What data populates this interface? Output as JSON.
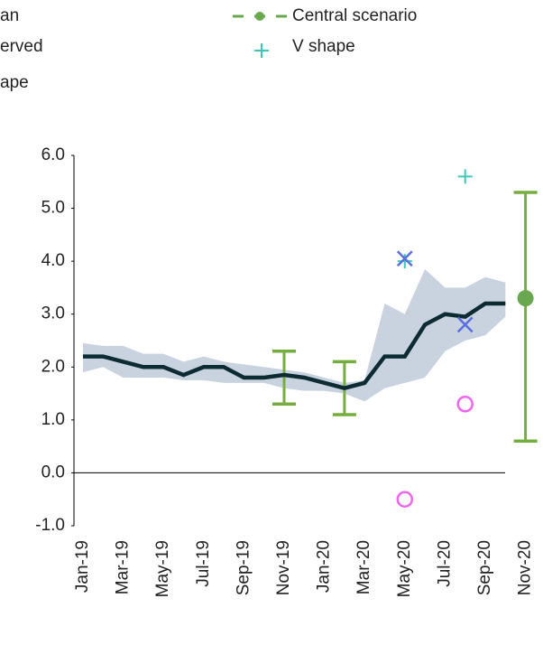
{
  "chart_data": {
    "type": "line",
    "categories": [
      "Jan-19",
      null,
      "Mar-19",
      null,
      "May-19",
      null,
      "Jul-19",
      null,
      "Sep-19",
      null,
      "Nov-19",
      null,
      "Jan-20",
      null,
      "Mar-20",
      null,
      "May-20",
      null,
      "Jul-20",
      null,
      "Sep-20",
      null,
      "Nov-20"
    ],
    "ylim": [
      -1,
      6
    ],
    "yticks": [
      {
        "value": -1,
        "label": "-1.0"
      },
      {
        "value": 0,
        "label": "0.0"
      },
      {
        "value": 1,
        "label": "1.0"
      },
      {
        "value": 2,
        "label": "2.0"
      },
      {
        "value": 3,
        "label": "3.0"
      },
      {
        "value": 4,
        "label": "4.0"
      },
      {
        "value": 5,
        "label": "5.0"
      },
      {
        "value": 6,
        "label": "6.0"
      }
    ],
    "band": {
      "name": "erved",
      "color": "#c9d3e0",
      "high": [
        2.45,
        2.4,
        2.4,
        2.25,
        2.25,
        2.1,
        2.2,
        2.1,
        2.05,
        2.0,
        1.95,
        1.9,
        1.8,
        1.7,
        1.75,
        3.2,
        3.0,
        3.85,
        3.5,
        3.5,
        3.7,
        3.6,
        null
      ],
      "low": [
        1.9,
        2.0,
        1.8,
        1.8,
        1.8,
        1.75,
        1.75,
        1.7,
        1.7,
        1.7,
        1.6,
        1.55,
        1.55,
        1.5,
        1.35,
        1.6,
        1.7,
        1.8,
        2.3,
        2.5,
        2.6,
        2.95,
        null
      ]
    },
    "series": [
      {
        "name": "an",
        "kind": "line",
        "color": "#0d2b33",
        "values": [
          2.2,
          2.2,
          2.1,
          2.0,
          2.0,
          1.85,
          2.0,
          2.0,
          1.8,
          1.8,
          1.85,
          1.8,
          1.7,
          1.6,
          1.7,
          2.2,
          2.2,
          2.8,
          3.0,
          2.95,
          3.2,
          3.2,
          null
        ]
      },
      {
        "name": "Central scenario",
        "kind": "dot",
        "color": "#6aa84f",
        "values": [
          null,
          null,
          null,
          null,
          null,
          null,
          null,
          null,
          null,
          null,
          null,
          null,
          null,
          null,
          null,
          null,
          null,
          null,
          null,
          null,
          null,
          null,
          3.3
        ]
      },
      {
        "name": "V shape",
        "kind": "plus",
        "color": "#3cc8b4",
        "values": [
          null,
          null,
          null,
          null,
          null,
          null,
          null,
          null,
          null,
          null,
          null,
          null,
          null,
          null,
          null,
          null,
          4.0,
          null,
          null,
          5.6,
          null,
          null,
          null
        ]
      },
      {
        "name": null,
        "kind": "cross",
        "color": "#5b6ee1",
        "values": [
          null,
          null,
          null,
          null,
          null,
          null,
          null,
          null,
          null,
          null,
          null,
          null,
          null,
          null,
          null,
          null,
          4.05,
          null,
          null,
          2.8,
          null,
          null,
          null
        ]
      },
      {
        "name": "ape",
        "kind": "circle",
        "color": "#ee66ee",
        "values": [
          null,
          null,
          null,
          null,
          null,
          null,
          null,
          null,
          null,
          null,
          null,
          null,
          null,
          null,
          null,
          null,
          -0.5,
          null,
          null,
          1.3,
          null,
          null,
          null
        ]
      }
    ],
    "error_bars": {
      "color": "#76ad3f",
      "low": [
        null,
        null,
        null,
        null,
        null,
        null,
        null,
        null,
        null,
        null,
        1.3,
        null,
        null,
        1.1,
        null,
        null,
        null,
        null,
        null,
        null,
        null,
        null,
        0.6
      ],
      "high": [
        null,
        null,
        null,
        null,
        null,
        null,
        null,
        null,
        null,
        null,
        2.3,
        null,
        null,
        2.1,
        null,
        null,
        null,
        null,
        null,
        null,
        null,
        null,
        5.3
      ]
    }
  }
}
